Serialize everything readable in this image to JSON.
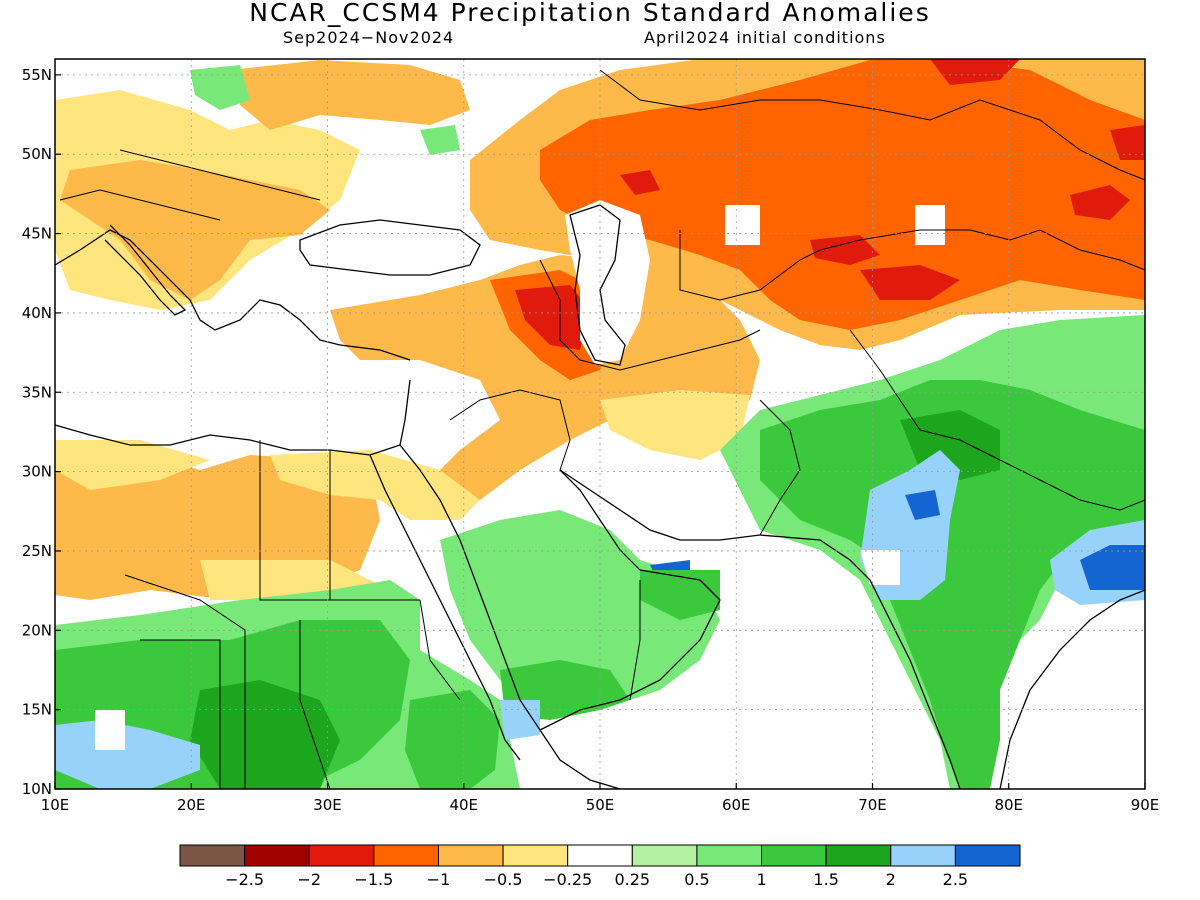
{
  "title": "NCAR_CCSM4 Precipitation Standard Anomalies",
  "subtitle_left": "Sep2024−Nov2024",
  "subtitle_right": "April2024 initial conditions",
  "map": {
    "lon_range": [
      10,
      90
    ],
    "lat_range": [
      10,
      56
    ],
    "x_ticks": [
      "10E",
      "20E",
      "30E",
      "40E",
      "50E",
      "60E",
      "70E",
      "80E",
      "90E"
    ],
    "y_ticks": [
      "10N",
      "15N",
      "20N",
      "25N",
      "30N",
      "35N",
      "40N",
      "45N",
      "50N",
      "55N"
    ],
    "grid": true
  },
  "colorbar": {
    "colors": [
      "#7b5646",
      "#a00000",
      "#e01b0e",
      "#ff6400",
      "#fdb94a",
      "#fee57d",
      "#ffffff",
      "#b3f0a0",
      "#78e878",
      "#3cc83c",
      "#1ea51e",
      "#96d2fa",
      "#1464d2"
    ],
    "labels": [
      "−2.5",
      "−2",
      "−1.5",
      "−1",
      "−0.5",
      "−0.25",
      "0.25",
      "0.5",
      "1",
      "1.5",
      "2",
      "2.5"
    ]
  }
}
